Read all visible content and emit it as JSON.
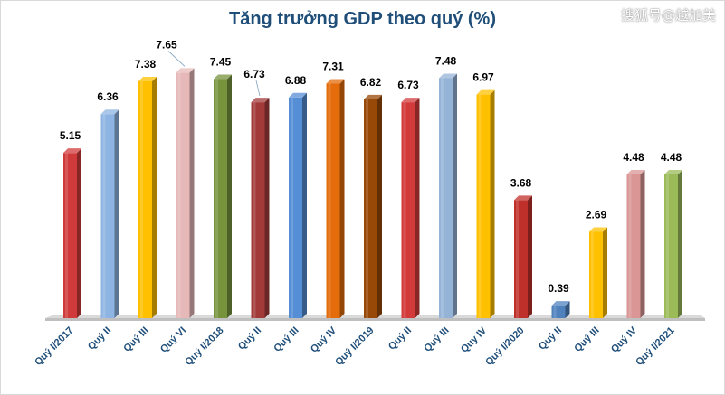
{
  "watermark": "搜狐号@越加美",
  "chart_data": {
    "type": "bar",
    "title": "Tăng trưởng GDP theo quý (%)",
    "xlabel": "",
    "ylabel": "",
    "ylim": [
      0,
      8
    ],
    "grid": false,
    "legend": "none",
    "categories": [
      "Quý I/2017",
      "Quý II",
      "Quý III",
      "Quý VI",
      "Quý I/2018",
      "Quý II",
      "Quý III",
      "Quý IV",
      "Quý I/2019",
      "Quý II",
      "Quý III",
      "Quý IV",
      "Quý I/2020",
      "Quý II",
      "Quý III",
      "Quý IV",
      "Quý I/2021"
    ],
    "values": [
      5.15,
      6.36,
      7.38,
      7.65,
      7.45,
      6.73,
      6.88,
      7.31,
      6.82,
      6.73,
      7.48,
      6.97,
      3.68,
      0.39,
      2.69,
      4.48,
      4.48
    ],
    "value_labels": [
      "5.15",
      "6.36",
      "7.38",
      "7.65",
      "7.45",
      "6.73",
      "6.88",
      "7.31",
      "6.82",
      "6.73",
      "7.48",
      "6.97",
      "3.68",
      "0.39",
      "2.69",
      "4.48",
      "4.48"
    ],
    "colors": [
      "#d13a3a",
      "#8db4e2",
      "#ffc000",
      "#e6b9b8",
      "#77933c",
      "#a33a3a",
      "#558ed5",
      "#e46c0a",
      "#984807",
      "#d33a3a",
      "#95b3d7",
      "#ffc000",
      "#c0302a",
      "#4f81bd",
      "#ffc000",
      "#d99694",
      "#9bbb59"
    ]
  }
}
